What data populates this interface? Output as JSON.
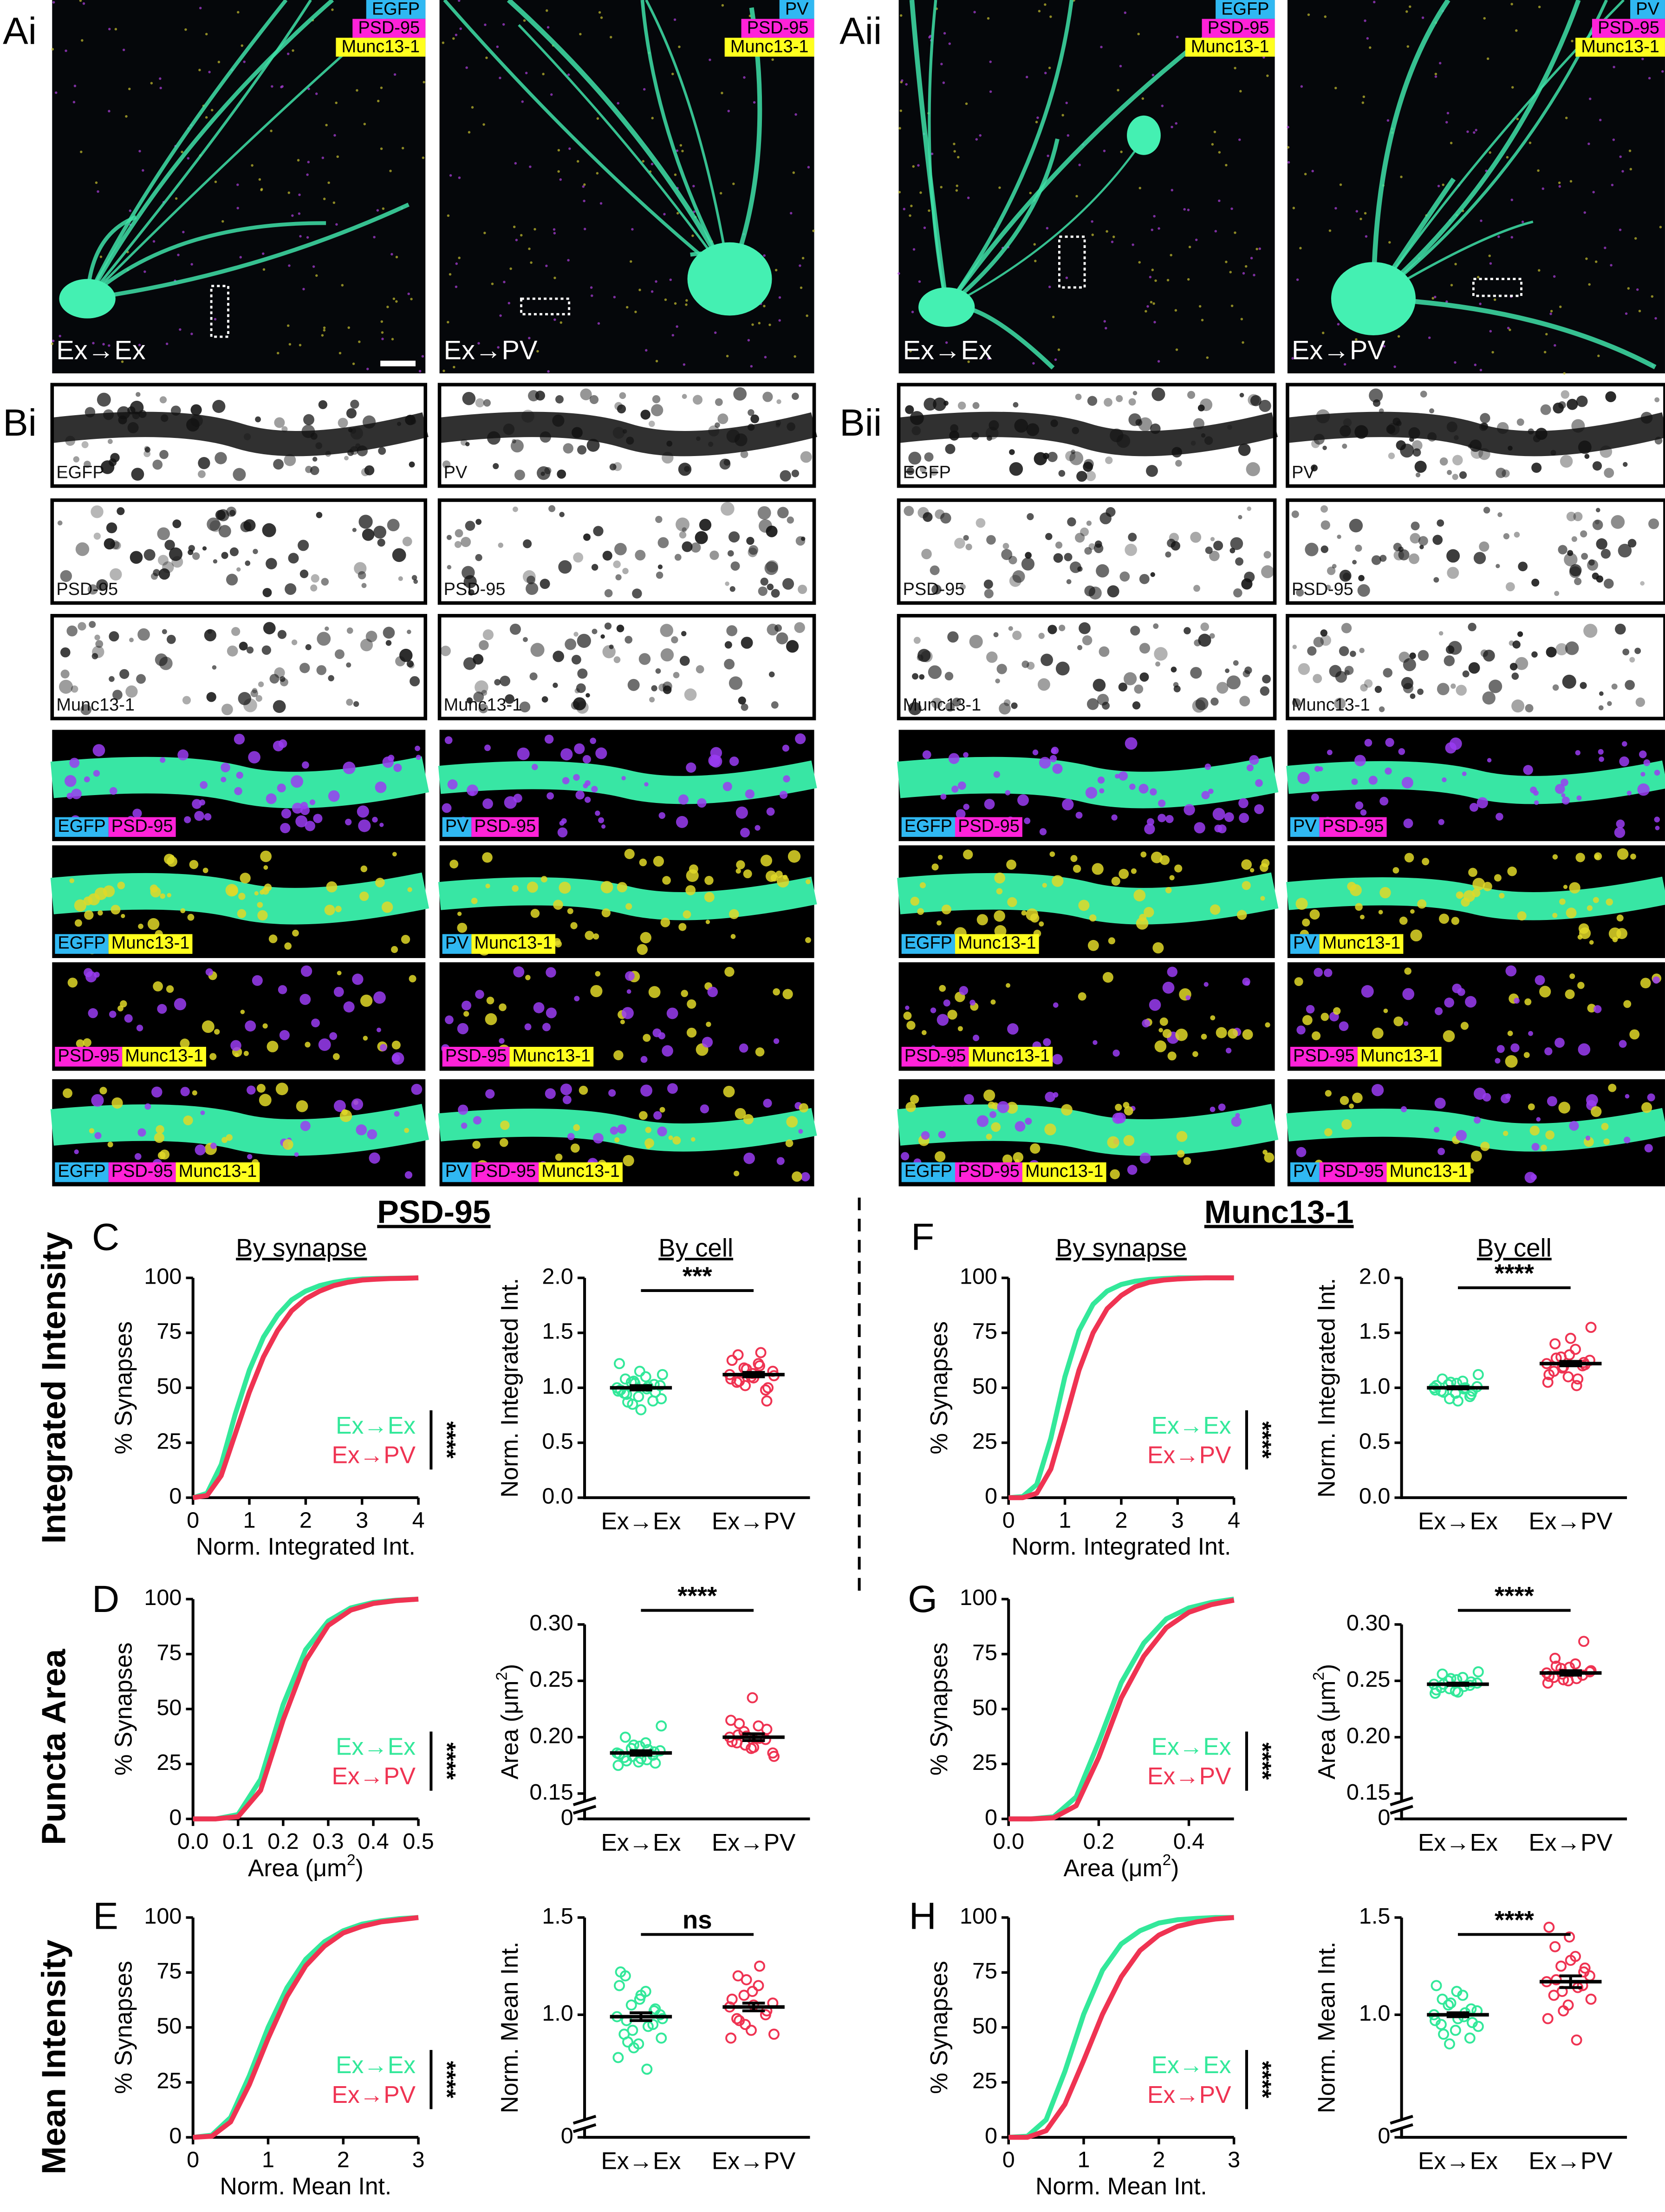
{
  "figure": {
    "panel_labels": [
      "Ai",
      "Aii",
      "Bi",
      "Bii"
    ],
    "channel_colors": {
      "EGFP": "#30b8f2",
      "PV": "#30b8f2",
      "PSD-95": "#ff22d8",
      "Munc13-1": "#ffff1e"
    },
    "a_images": [
      {
        "channels": [
          "EGFP",
          "PSD-95",
          "Munc13-1"
        ],
        "condition": "Ex→Ex"
      },
      {
        "channels": [
          "PV",
          "PSD-95",
          "Munc13-1"
        ],
        "condition": "Ex→PV"
      },
      {
        "channels": [
          "EGFP",
          "PSD-95",
          "Munc13-1"
        ],
        "condition": "Ex→Ex"
      },
      {
        "channels": [
          "PV",
          "PSD-95",
          "Munc13-1"
        ],
        "condition": "Ex→PV"
      }
    ],
    "b_columns": [
      {
        "rows": [
          [
            "EGFP"
          ],
          [
            "PSD-95"
          ],
          [
            "Munc13-1"
          ],
          [
            "EGFP",
            "PSD-95"
          ],
          [
            "EGFP",
            "Munc13-1"
          ],
          [
            "PSD-95",
            "Munc13-1"
          ],
          [
            "EGFP",
            "PSD-95",
            "Munc13-1"
          ]
        ]
      },
      {
        "rows": [
          [
            "PV"
          ],
          [
            "PSD-95"
          ],
          [
            "Munc13-1"
          ],
          [
            "PV",
            "PSD-95"
          ],
          [
            "PV",
            "Munc13-1"
          ],
          [
            "PSD-95",
            "Munc13-1"
          ],
          [
            "PV",
            "PSD-95",
            "Munc13-1"
          ]
        ]
      },
      {
        "rows": [
          [
            "EGFP"
          ],
          [
            "PSD-95"
          ],
          [
            "Munc13-1"
          ],
          [
            "EGFP",
            "PSD-95"
          ],
          [
            "EGFP",
            "Munc13-1"
          ],
          [
            "PSD-95",
            "Munc13-1"
          ],
          [
            "EGFP",
            "PSD-95",
            "Munc13-1"
          ]
        ]
      },
      {
        "rows": [
          [
            "PV"
          ],
          [
            "PSD-95"
          ],
          [
            "Munc13-1"
          ],
          [
            "PV",
            "PSD-95"
          ],
          [
            "PV",
            "Munc13-1"
          ],
          [
            "PSD-95",
            "Munc13-1"
          ],
          [
            "PV",
            "PSD-95",
            "Munc13-1"
          ]
        ]
      }
    ],
    "section_titles": [
      "PSD-95",
      "Munc13-1"
    ],
    "row_titles": [
      "Integrated Intensity",
      "Puncta Area",
      "Mean Intensity"
    ],
    "column_titles": [
      "By synapse",
      "By cell",
      "By synapse",
      "By cell"
    ]
  },
  "chart_data": [
    {
      "type": "line",
      "panel": "C",
      "x_label": "Norm. Integrated Int.",
      "y_label": "% Synapses",
      "x": [
        0,
        0.25,
        0.5,
        0.75,
        1,
        1.25,
        1.5,
        1.75,
        2,
        2.25,
        2.5,
        2.75,
        3,
        3.25,
        3.5,
        3.75,
        4
      ],
      "xlim": [
        0,
        4
      ],
      "xticks": [
        0,
        1,
        2,
        3,
        4
      ],
      "ylim": [
        0,
        100
      ],
      "yticks": [
        0,
        25,
        50,
        75,
        100
      ],
      "series": [
        {
          "name": "Ex→Ex",
          "color": "#33e89a",
          "values": [
            0,
            2,
            15,
            38,
            58,
            73,
            83,
            90,
            94,
            96.5,
            98,
            99,
            99.5,
            99.7,
            99.8,
            99.9,
            100
          ]
        },
        {
          "name": "Ex→PV",
          "color": "#ef3352",
          "values": [
            0,
            1,
            10,
            29,
            48,
            64,
            76,
            85,
            90.5,
            94,
            96.5,
            98,
            99,
            99.4,
            99.7,
            99.8,
            100
          ]
        }
      ],
      "significance": "****"
    },
    {
      "type": "scatter",
      "categories": [
        "Ex→Ex",
        "Ex→PV"
      ],
      "y_label": "Norm. Integrated Int.",
      "ylim": [
        0,
        2
      ],
      "yticks": [
        {
          "value": 0,
          "label": "0.0"
        },
        0.5,
        {
          "value": 1,
          "label": "1.0"
        },
        1.5,
        {
          "value": 2,
          "label": "2.0"
        }
      ],
      "series": [
        {
          "color": "#33e89a",
          "values": [
            1.0,
            0.95,
            1.05,
            0.92,
            1.1,
            0.88,
            1.02,
            0.97,
            1.08,
            0.85,
            1.15,
            0.99,
            1.03,
            0.9,
            1.22,
            0.94,
            1.06,
            0.8,
            1.01,
            0.96,
            1.12,
            0.98,
            0.87,
            1.04
          ],
          "mean": 1.0,
          "sem": 0.02
        },
        {
          "color": "#ef3352",
          "values": [
            1.12,
            1.05,
            1.18,
            1.1,
            1.22,
            0.98,
            1.15,
            1.08,
            1.3,
            1.02,
            1.13,
            1.2,
            0.88,
            1.11,
            1.25,
            1.06,
            1.17,
            1.09,
            1.32,
            1.0
          ],
          "mean": 1.12,
          "sem": 0.02
        }
      ],
      "significance": "***"
    },
    {
      "type": "line",
      "panel": "D",
      "x_label": [
        "Area (μm",
        "2",
        ")"
      ],
      "y_label": "% Synapses",
      "x": [
        0,
        0.05,
        0.1,
        0.15,
        0.2,
        0.25,
        0.3,
        0.35,
        0.4,
        0.45,
        0.5
      ],
      "xlim": [
        0,
        0.5
      ],
      "xticks": [
        {
          "value": 0,
          "label": "0.0"
        },
        0.1,
        0.2,
        0.3,
        0.4,
        0.5
      ],
      "ylim": [
        0,
        100
      ],
      "yticks": [
        0,
        25,
        50,
        75,
        100
      ],
      "series": [
        {
          "name": "Ex→Ex",
          "color": "#33e89a",
          "values": [
            0,
            0,
            2,
            18,
            52,
            77,
            90,
            96,
            98.5,
            99.5,
            100
          ]
        },
        {
          "name": "Ex→PV",
          "color": "#ef3352",
          "values": [
            0,
            0,
            1,
            13,
            45,
            72,
            88,
            95,
            98,
            99.3,
            100
          ]
        }
      ],
      "significance": "****"
    },
    {
      "type": "scatter",
      "categories": [
        "Ex→Ex",
        "Ex→PV"
      ],
      "y_label": [
        "Area (μm",
        "2",
        ")"
      ],
      "ylim": [
        0,
        0.3
      ],
      "axis_break": [
        0,
        0.15
      ],
      "yticks": [
        0,
        0.15,
        {
          "value": 0.2,
          "label": "0.20"
        },
        0.25,
        {
          "value": 0.3,
          "label": "0.30"
        }
      ],
      "series": [
        {
          "color": "#33e89a",
          "values": [
            0.186,
            0.182,
            0.19,
            0.178,
            0.195,
            0.184,
            0.188,
            0.175,
            0.2,
            0.183,
            0.192,
            0.18,
            0.187,
            0.21,
            0.185,
            0.179,
            0.193,
            0.181,
            0.189,
            0.177
          ],
          "mean": 0.186,
          "sem": 0.002
        },
        {
          "color": "#ef3352",
          "values": [
            0.2,
            0.195,
            0.205,
            0.19,
            0.21,
            0.198,
            0.186,
            0.215,
            0.202,
            0.193,
            0.235,
            0.199,
            0.207,
            0.183,
            0.196,
            0.212,
            0.201,
            0.191
          ],
          "mean": 0.2,
          "sem": 0.003
        }
      ],
      "significance": "****"
    },
    {
      "type": "line",
      "panel": "E",
      "x_label": "Norm. Mean Int.",
      "y_label": "% Synapses",
      "x": [
        0,
        0.25,
        0.5,
        0.75,
        1,
        1.25,
        1.5,
        1.75,
        2,
        2.25,
        2.5,
        2.75,
        3
      ],
      "xlim": [
        0,
        3
      ],
      "xticks": [
        0,
        1,
        2,
        3
      ],
      "ylim": [
        0,
        100
      ],
      "yticks": [
        0,
        25,
        50,
        75,
        100
      ],
      "series": [
        {
          "name": "Ex→Ex",
          "color": "#33e89a",
          "values": [
            0,
            1,
            9,
            28,
            50,
            68,
            81,
            89,
            94,
            97,
            98.5,
            99.5,
            100
          ]
        },
        {
          "name": "Ex→PV",
          "color": "#ef3352",
          "values": [
            0,
            0.5,
            7,
            24,
            45,
            64,
            78,
            87,
            93,
            96,
            98,
            99,
            100
          ]
        }
      ],
      "significance": "****"
    },
    {
      "type": "scatter",
      "categories": [
        "Ex→Ex",
        "Ex→PV"
      ],
      "y_label": "Norm. Mean Int.",
      "ylim": [
        0,
        1.5
      ],
      "axis_break": [
        0,
        0.5
      ],
      "yticks": [
        0,
        {
          "value": 1,
          "label": "1.0"
        },
        1.5
      ],
      "series": [
        {
          "color": "#33e89a",
          "values": [
            0.99,
            0.9,
            1.05,
            0.85,
            1.12,
            0.95,
            1.0,
            0.78,
            1.2,
            0.92,
            1.08,
            0.72,
            1.02,
            0.88,
            1.15,
            0.97,
            0.83,
            1.1,
            0.94,
            1.03,
            0.98,
            1.22,
            0.86
          ],
          "mean": 0.99,
          "sem": 0.02
        },
        {
          "color": "#ef3352",
          "values": [
            1.04,
            0.98,
            1.1,
            0.92,
            1.15,
            1.0,
            1.06,
            0.88,
            1.2,
            0.95,
            1.12,
            1.25,
            1.02,
            0.9,
            1.08,
            0.97,
            1.18,
            1.05
          ],
          "mean": 1.04,
          "sem": 0.02
        }
      ],
      "significance": "ns"
    },
    {
      "type": "line",
      "panel": "F",
      "x_label": "Norm. Integrated Int.",
      "y_label": "% Synapses",
      "x": [
        0,
        0.25,
        0.5,
        0.75,
        1,
        1.25,
        1.5,
        1.75,
        2,
        2.25,
        2.5,
        2.75,
        3,
        3.25,
        3.5,
        3.75,
        4
      ],
      "xlim": [
        0,
        4
      ],
      "xticks": [
        0,
        1,
        2,
        3,
        4
      ],
      "ylim": [
        0,
        100
      ],
      "yticks": [
        0,
        25,
        50,
        75,
        100
      ],
      "series": [
        {
          "name": "Ex→Ex",
          "color": "#33e89a",
          "values": [
            0,
            0.5,
            6,
            27,
            55,
            76,
            88,
            94,
            97,
            98.5,
            99.3,
            99.7,
            100,
            100,
            100,
            100,
            100
          ]
        },
        {
          "name": "Ex→PV",
          "color": "#ef3352",
          "values": [
            0,
            0,
            2,
            13,
            35,
            58,
            75,
            86,
            92,
            96,
            98,
            99,
            99.5,
            99.8,
            100,
            100,
            100
          ]
        }
      ],
      "significance": "****"
    },
    {
      "type": "scatter",
      "categories": [
        "Ex→Ex",
        "Ex→PV"
      ],
      "y_label": "Norm. Integrated Int.",
      "ylim": [
        0,
        2
      ],
      "yticks": [
        {
          "value": 0,
          "label": "0.0"
        },
        0.5,
        {
          "value": 1,
          "label": "1.0"
        },
        1.5,
        {
          "value": 2,
          "label": "2.0"
        }
      ],
      "series": [
        {
          "color": "#33e89a",
          "values": [
            1.0,
            0.97,
            1.03,
            0.95,
            1.06,
            0.92,
            1.01,
            0.98,
            1.08,
            0.9,
            1.04,
            0.99,
            0.94,
            1.12,
            1.02,
            0.96,
            1.05,
            0.88,
            1.0,
            0.97
          ],
          "mean": 1.0,
          "sem": 0.01
        },
        {
          "color": "#ef3352",
          "values": [
            1.22,
            1.15,
            1.28,
            1.1,
            1.35,
            1.2,
            1.25,
            1.05,
            1.4,
            1.18,
            1.3,
            1.02,
            1.23,
            1.55,
            1.12,
            1.27,
            1.19,
            1.45,
            1.08,
            1.21
          ],
          "mean": 1.22,
          "sem": 0.02
        }
      ],
      "significance": "****"
    },
    {
      "type": "line",
      "panel": "G",
      "x_label": [
        "Area (μm",
        "2",
        ")"
      ],
      "y_label": "% Synapses",
      "x": [
        0,
        0.05,
        0.1,
        0.15,
        0.2,
        0.25,
        0.3,
        0.35,
        0.4,
        0.45,
        0.5
      ],
      "xlim": [
        0,
        0.5
      ],
      "xticks": [
        {
          "value": 0,
          "label": "0.0"
        },
        0.2,
        0.4
      ],
      "ylim": [
        0,
        100
      ],
      "yticks": [
        0,
        25,
        50,
        75,
        100
      ],
      "series": [
        {
          "name": "Ex→Ex",
          "color": "#33e89a",
          "values": [
            0,
            0,
            1,
            10,
            35,
            62,
            80,
            91,
            96,
            98.5,
            100
          ]
        },
        {
          "name": "Ex→PV",
          "color": "#ef3352",
          "values": [
            0,
            0,
            0.5,
            6,
            28,
            55,
            74,
            87,
            94,
            97.5,
            99.5
          ]
        }
      ],
      "significance": "****"
    },
    {
      "type": "scatter",
      "categories": [
        "Ex→Ex",
        "Ex→PV"
      ],
      "y_label": [
        "Area (μm",
        "2",
        ")"
      ],
      "ylim": [
        0,
        0.3
      ],
      "axis_break": [
        0,
        0.15
      ],
      "yticks": [
        0,
        0.15,
        {
          "value": 0.2,
          "label": "0.20"
        },
        0.25,
        {
          "value": 0.3,
          "label": "0.30"
        }
      ],
      "series": [
        {
          "color": "#33e89a",
          "values": [
            0.247,
            0.244,
            0.25,
            0.241,
            0.253,
            0.246,
            0.248,
            0.239,
            0.256,
            0.243,
            0.251,
            0.245,
            0.249,
            0.258,
            0.242,
            0.247,
            0.252,
            0.24
          ],
          "mean": 0.247,
          "sem": 0.001
        },
        {
          "color": "#ef3352",
          "values": [
            0.257,
            0.253,
            0.261,
            0.25,
            0.265,
            0.255,
            0.258,
            0.248,
            0.27,
            0.256,
            0.262,
            0.252,
            0.285,
            0.259,
            0.254,
            0.263,
            0.251
          ],
          "mean": 0.257,
          "sem": 0.002
        }
      ],
      "significance": "****"
    },
    {
      "type": "line",
      "panel": "H",
      "x_label": "Norm. Mean Int.",
      "y_label": "% Synapses",
      "x": [
        0,
        0.25,
        0.5,
        0.75,
        1,
        1.25,
        1.5,
        1.75,
        2,
        2.25,
        2.5,
        2.75,
        3
      ],
      "xlim": [
        0,
        3
      ],
      "xticks": [
        0,
        1,
        2,
        3
      ],
      "ylim": [
        0,
        100
      ],
      "yticks": [
        0,
        25,
        50,
        75,
        100
      ],
      "series": [
        {
          "name": "Ex→Ex",
          "color": "#33e89a",
          "values": [
            0,
            0.5,
            8,
            30,
            56,
            76,
            88,
            94,
            97.5,
            99,
            99.6,
            100,
            100
          ]
        },
        {
          "name": "Ex→PV",
          "color": "#ef3352",
          "values": [
            0,
            0,
            3,
            15,
            35,
            56,
            73,
            85,
            92,
            96,
            98,
            99.3,
            100
          ]
        }
      ],
      "significance": "****"
    },
    {
      "type": "scatter",
      "categories": [
        "Ex→Ex",
        "Ex→PV"
      ],
      "y_label": "Norm. Mean Int.",
      "ylim": [
        0,
        1.5
      ],
      "axis_break": [
        0,
        0.5
      ],
      "yticks": [
        0,
        {
          "value": 1,
          "label": "1.0"
        },
        1.5
      ],
      "series": [
        {
          "color": "#33e89a",
          "values": [
            1.0,
            0.95,
            1.05,
            0.92,
            1.1,
            0.88,
            1.02,
            0.97,
            1.08,
            0.85,
            1.12,
            0.99,
            1.03,
            0.94,
            1.15,
            0.9,
            1.06,
            0.98,
            1.01,
            0.96
          ],
          "mean": 1.0,
          "sem": 0.01
        },
        {
          "color": "#ef3352",
          "values": [
            1.17,
            1.1,
            1.25,
            1.05,
            1.3,
            1.15,
            1.2,
            0.98,
            1.35,
            1.12,
            1.4,
            0.87,
            1.22,
            1.08,
            1.45,
            1.18,
            1.02,
            1.28,
            1.14,
            1.24
          ],
          "mean": 1.17,
          "sem": 0.03
        }
      ],
      "significance": "****"
    }
  ]
}
